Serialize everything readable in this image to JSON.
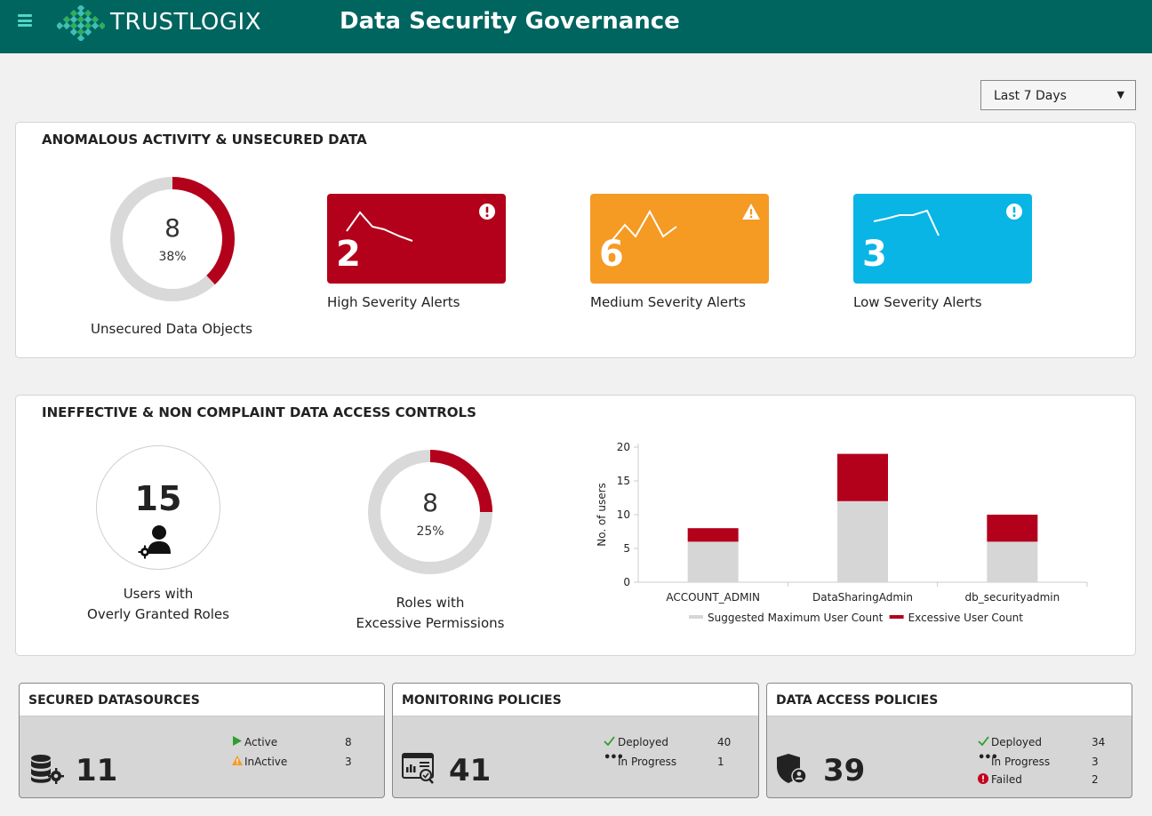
{
  "header": {
    "logo_text": "TRUSTLOGIX",
    "title": "Data Security Governance",
    "colors": {
      "bar": "#00645f",
      "menu_icon": "#4fd6c7",
      "logo_green": "#2fae5e",
      "logo_teal": "#3fbfb5"
    }
  },
  "filter": {
    "selected": "Last 7 Days"
  },
  "anomalous": {
    "title": "ANOMALOUS ACTIVITY & UNSECURED DATA",
    "unsecured": {
      "value": "8",
      "percent": "38%",
      "fraction": 0.38,
      "label": "Unsecured Data Objects"
    },
    "alerts": [
      {
        "count": "2",
        "label": "High Severity Alerts",
        "color": "#b3001b",
        "icon": "exclamation-circle-icon"
      },
      {
        "count": "6",
        "label": "Medium Severity Alerts",
        "color": "#f59a23",
        "icon": "warning-triangle-icon"
      },
      {
        "count": "3",
        "label": "Low Severity Alerts",
        "color": "#08b5e5",
        "icon": "exclamation-circle-icon"
      }
    ]
  },
  "access": {
    "title": "INEFFECTIVE & NON COMPLAINT DATA ACCESS CONTROLS",
    "users": {
      "value": "15",
      "label_line1": "Users with",
      "label_line2": "Overly Granted Roles"
    },
    "roles": {
      "value": "8",
      "percent": "25%",
      "fraction": 0.25,
      "label_line1": "Roles with",
      "label_line2": "Excessive Permissions"
    }
  },
  "chart_data": {
    "type": "bar",
    "stacked": true,
    "categories": [
      "ACCOUNT_ADMIN",
      "DataSharingAdmin",
      "db_securityadmin"
    ],
    "series": [
      {
        "name": "Suggested Maximum User Count",
        "values": [
          6,
          12,
          6
        ],
        "color": "#d6d6d6"
      },
      {
        "name": "Excessive User Count",
        "values": [
          2,
          7,
          4
        ],
        "color": "#b3001b"
      }
    ],
    "ylabel": "No. of users",
    "ylim": [
      0,
      20
    ],
    "yticks": [
      "0",
      "5",
      "10",
      "15",
      "20"
    ],
    "legend": "bottom"
  },
  "cards": {
    "datasources": {
      "title": "SECURED DATASOURCES",
      "total": "11",
      "icon": "database-gear-icon",
      "stats": [
        {
          "label": "Active",
          "value": "8",
          "icon": "play-icon"
        },
        {
          "label": "InActive",
          "value": "3",
          "icon": "warning-triangle-icon"
        }
      ]
    },
    "monitoring": {
      "title": "MONITORING POLICIES",
      "total": "41",
      "icon": "monitor-chart-icon",
      "stats": [
        {
          "label": "Deployed",
          "value": "40",
          "icon": "check-icon"
        },
        {
          "label": "In Progress",
          "value": "1",
          "icon": "ellipsis-icon"
        }
      ]
    },
    "access_policies": {
      "title": "DATA ACCESS POLICIES",
      "total": "39",
      "icon": "shield-user-icon",
      "stats": [
        {
          "label": "Deployed",
          "value": "34",
          "icon": "check-icon"
        },
        {
          "label": "In Progress",
          "value": "3",
          "icon": "ellipsis-icon"
        },
        {
          "label": "Failed",
          "value": "2",
          "icon": "error-circle-icon"
        }
      ]
    }
  }
}
